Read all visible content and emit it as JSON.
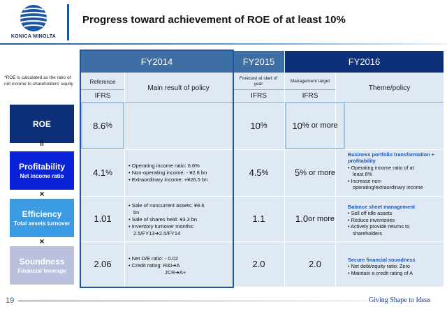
{
  "header": {
    "logo_text": "KONICA MINOLTA",
    "title": "Progress toward achievement of ROE of at least 10%"
  },
  "note": "*ROE is calculated as the ratio of net income to shareholders' equity",
  "columns": {
    "fy2014": "FY2014",
    "fy2015": "FY2015",
    "fy2016": "FY2016",
    "reference": "Reference",
    "main_result": "Main result of policy",
    "forecast": "Forecast at start of year",
    "mgmt_target": "Management target",
    "theme": "Theme/policy",
    "ifrs": "IFRS"
  },
  "operators": {
    "equals": "||",
    "times": "×"
  },
  "rows": {
    "roe": {
      "label": "ROE",
      "ref_value": "8.6",
      "forecast_value": "10",
      "target_value": "10",
      "target_suffix": "% or more"
    },
    "profitability": {
      "label": "Profitability",
      "sub": "Net income ratio",
      "ref_value": "4.1",
      "results": [
        "• Operating income ratio: 6.6%",
        "• Non-operating income: - ¥2.8 bn",
        "• Extraordinary income: +¥26.5 bn"
      ],
      "forecast_value": "4.5",
      "target_value": "5",
      "target_suffix": "% or more",
      "theme_heading": "Business portfolio transformation + profitability",
      "theme_items": [
        "• Operating income ratio of at",
        "  least 8%",
        "• Increase non-",
        "  operating/extraordinary income"
      ]
    },
    "efficiency": {
      "label": "Efficiency",
      "sub": "Total assets turnover",
      "ref_value": "1.01",
      "results": [
        "• Sale of noncurrent assets: ¥8.6",
        "  bn",
        "• Sale of shares held: ¥3.3 bn",
        "• Inventory turnover months:",
        "  2.5/FY13➔2.5/FY14"
      ],
      "forecast_value": "1.1",
      "target_value": "1.0",
      "target_suffix": " or more",
      "theme_heading": "Balance sheet management",
      "theme_items": [
        "• Sell off idle assets",
        "• Reduce inventories",
        "• Actively provide returns to",
        "  shareholders"
      ]
    },
    "soundness": {
      "label": "Soundness",
      "sub": "Financial leverage",
      "ref_value": "2.06",
      "results": [
        "• Net D/E ratio: - 0.02",
        "• Credit rating: R&I➔A",
        "JCR➔A+"
      ],
      "forecast_value": "2.0",
      "target_value": "2.0",
      "theme_heading": "Secure financial soundness",
      "theme_items": [
        "• Net debt/equity ratio: Zero",
        "• Maintain a credit rating of A"
      ]
    }
  },
  "footer": {
    "page": "19",
    "tagline": "Giving Shape to Ideas"
  },
  "colors": {
    "brand_blue": "#1b56a4",
    "fy2014_header": "#3d6ea4",
    "fy2016_header": "#0d2f77",
    "roe_label": "#0d2f77",
    "profitability_label": "#0b23d8",
    "efficiency_label": "#3b9be2",
    "soundness_label": "#b9c1de",
    "light_cell": "#dfe9f4",
    "highlight_border": "#9dc3e6"
  }
}
